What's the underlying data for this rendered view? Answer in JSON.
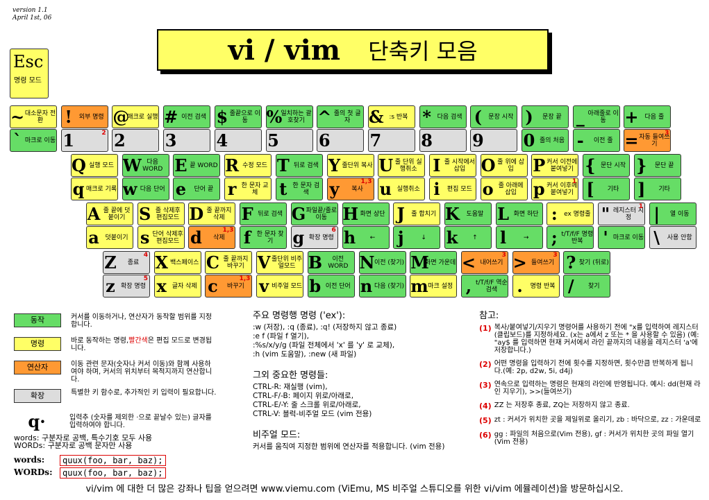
{
  "header": {
    "version": "version 1.1",
    "date": "April 1st, 06",
    "title": "vi / vim",
    "subtitle": "단축키 모음",
    "esc": {
      "char": "Esc",
      "label": "명령 모드",
      "color": "#ffff66"
    }
  },
  "keyboard": {
    "rows": [
      {
        "keys": [
          {
            "top": {
              "char": "~",
              "label": "대소문자 전환",
              "color": "#ffff66"
            },
            "bottom": {
              "char": "`",
              "label": "마크로 이동",
              "color": "#66dd66"
            }
          },
          {
            "top": {
              "char": "!",
              "label": "외부 명령",
              "color": "#ff9933"
            },
            "bottom": {
              "char": "1",
              "note": "2",
              "color": "#dddddd"
            }
          },
          {
            "top": {
              "char": "@",
              "label": "매크로 실행",
              "color": "#ffff66"
            },
            "bottom": {
              "char": "2",
              "color": "#dddddd"
            }
          },
          {
            "top": {
              "char": "#",
              "label": "이전 검색",
              "color": "#66dd66"
            },
            "bottom": {
              "char": "3",
              "color": "#dddddd"
            }
          },
          {
            "top": {
              "char": "$",
              "label": "줄끝으로 이동",
              "color": "#66dd66"
            },
            "bottom": {
              "char": "4",
              "color": "#dddddd"
            }
          },
          {
            "top": {
              "char": "%",
              "label": "일치하는 괄호찾기",
              "color": "#66dd66"
            },
            "bottom": {
              "char": "5",
              "color": "#dddddd"
            }
          },
          {
            "top": {
              "char": "^",
              "label": "줄의 첫 글자",
              "color": "#66dd66"
            },
            "bottom": {
              "char": "6",
              "color": "#dddddd"
            }
          },
          {
            "top": {
              "char": "&",
              "label": ":s 반복",
              "color": "#ffff66"
            },
            "bottom": {
              "char": "7",
              "color": "#dddddd"
            }
          },
          {
            "top": {
              "char": "*",
              "label": "다음 검색",
              "color": "#66dd66"
            },
            "bottom": {
              "char": "8",
              "color": "#dddddd"
            }
          },
          {
            "top": {
              "char": "(",
              "label": "문장 시작",
              "color": "#66dd66"
            },
            "bottom": {
              "char": "9",
              "color": "#dddddd"
            }
          },
          {
            "top": {
              "char": ")",
              "label": "문장 끝",
              "color": "#66dd66"
            },
            "bottom": {
              "char": "0",
              "label": "줄의 처음",
              "color": "#66dd66"
            }
          },
          {
            "top": {
              "char": "_",
              "label": "아래줄로 이동",
              "color": "#66dd66"
            },
            "bottom": {
              "char": "-",
              "label": "이전 줄",
              "color": "#66dd66"
            }
          },
          {
            "top": {
              "char": "+",
              "label": "다음 줄",
              "color": "#66dd66"
            },
            "bottom": {
              "char": "=",
              "label": "자동 들여쓰기",
              "note": "3",
              "color": "#ff9933"
            }
          }
        ]
      },
      {
        "keys": [
          {
            "top": {
              "char": "Q",
              "label": "실행 모드",
              "color": "#ffff66"
            },
            "bottom": {
              "char": "q",
              "label": "매크로 기록",
              "color": "#ffff66"
            }
          },
          {
            "top": {
              "char": "W",
              "label": "다음 WORD",
              "color": "#66dd66"
            },
            "bottom": {
              "char": "w",
              "label": "다음 단어",
              "color": "#66dd66"
            }
          },
          {
            "top": {
              "char": "E",
              "label": "끝 WORD",
              "color": "#66dd66"
            },
            "bottom": {
              "char": "e",
              "label": "단어 끝",
              "color": "#66dd66"
            }
          },
          {
            "top": {
              "char": "R",
              "label": "수정 모드",
              "color": "#ffff66"
            },
            "bottom": {
              "char": "r",
              "label": "한 문자 교체",
              "color": "#ffff66"
            }
          },
          {
            "top": {
              "char": "T",
              "label": "뒤로 검색",
              "color": "#66dd66"
            },
            "bottom": {
              "char": "t",
              "label": "한 문자 검색",
              "color": "#66dd66"
            }
          },
          {
            "top": {
              "char": "Y",
              "label": "줄단위 복사",
              "color": "#ffff66"
            },
            "bottom": {
              "char": "y",
              "label": "복사",
              "note": "1,3",
              "color": "#ff9933"
            }
          },
          {
            "top": {
              "char": "U",
              "label": "줄 단위 실행취소",
              "color": "#ffff66"
            },
            "bottom": {
              "char": "u",
              "label": "실행취소",
              "color": "#ffff66"
            }
          },
          {
            "top": {
              "char": "I",
              "label": "줄 시작에서 삽입",
              "color": "#ffff66"
            },
            "bottom": {
              "char": "i",
              "label": "편집 모드",
              "color": "#ffff66"
            }
          },
          {
            "top": {
              "char": "O",
              "label": "줄 위에 삽입",
              "color": "#ffff66"
            },
            "bottom": {
              "char": "o",
              "label": "줄 아래에 삽입",
              "color": "#ffff66"
            }
          },
          {
            "top": {
              "char": "P",
              "label": "커서 이전에 붙여넣기",
              "color": "#ffff66"
            },
            "bottom": {
              "char": "p",
              "label": "커서 이후에 붙여넣기",
              "note": "1",
              "color": "#ffff66"
            }
          },
          {
            "top": {
              "char": "{",
              "label": "문단 시작",
              "color": "#66dd66"
            },
            "bottom": {
              "char": "[",
              "label": "기타",
              "color": "#66dd66"
            }
          },
          {
            "top": {
              "char": "}",
              "label": "문단 끝",
              "color": "#66dd66"
            },
            "bottom": {
              "char": "]",
              "label": "기타",
              "color": "#66dd66"
            }
          }
        ]
      },
      {
        "keys": [
          {
            "top": {
              "char": "A",
              "label": "줄 끝에 덧붙이기",
              "color": "#ffff66"
            },
            "bottom": {
              "char": "a",
              "label": "덧붙이기",
              "color": "#ffff66"
            }
          },
          {
            "top": {
              "char": "S",
              "label": "줄 삭제후 편집모드",
              "color": "#ffff66"
            },
            "bottom": {
              "char": "s",
              "label": "단어 삭제후 편집모드",
              "color": "#ffff66"
            }
          },
          {
            "top": {
              "char": "D",
              "label": "줄 끝까지 삭제",
              "color": "#ffff66"
            },
            "bottom": {
              "char": "d",
              "label": "삭제",
              "note": "1,3",
              "color": "#ff9933"
            }
          },
          {
            "top": {
              "char": "F",
              "label": "뒤로 검색",
              "color": "#66dd66"
            },
            "bottom": {
              "char": "f",
              "label": "한 문자 찾기",
              "color": "#66dd66"
            }
          },
          {
            "top": {
              "char": "G",
              "label": "파일끝/줄로 이동",
              "color": "#66dd66"
            },
            "bottom": {
              "char": "g",
              "label": "확장 명령",
              "note": "6",
              "color": "#dddddd"
            }
          },
          {
            "top": {
              "char": "H",
              "label": "화면 상단",
              "color": "#66dd66"
            },
            "bottom": {
              "char": "h",
              "label": "←",
              "color": "#66dd66"
            }
          },
          {
            "top": {
              "char": "J",
              "label": "줄 합치기",
              "color": "#ffff66"
            },
            "bottom": {
              "char": "j",
              "label": "↓",
              "color": "#66dd66"
            }
          },
          {
            "top": {
              "char": "K",
              "label": "도움말",
              "color": "#66dd66"
            },
            "bottom": {
              "char": "k",
              "label": "↑",
              "color": "#66dd66"
            }
          },
          {
            "top": {
              "char": "L",
              "label": "화면 하단",
              "color": "#66dd66"
            },
            "bottom": {
              "char": "l",
              "label": "→",
              "color": "#66dd66"
            }
          },
          {
            "top": {
              "char": ":",
              "label": "ex 명령줄",
              "color": "#ffff66"
            },
            "bottom": {
              "char": ";",
              "label": "t/T/f/F 명령 반복",
              "color": "#66dd66"
            }
          },
          {
            "top": {
              "char": "\"",
              "label": "레지스터 지정",
              "note": "1",
              "color": "#dddddd"
            },
            "bottom": {
              "char": "'",
              "label": "마크로 이동",
              "color": "#66dd66"
            }
          },
          {
            "top": {
              "char": "|",
              "label": "열 이동",
              "color": "#66dd66"
            },
            "bottom": {
              "char": "\\",
              "label": "사용 안함",
              "color": "#dddddd"
            }
          }
        ]
      },
      {
        "keys": [
          {
            "top": {
              "char": "Z",
              "label": "종료",
              "note": "4",
              "color": "#dddddd"
            },
            "bottom": {
              "char": "z",
              "label": "확장 명령",
              "note": "5",
              "color": "#dddddd"
            }
          },
          {
            "top": {
              "char": "X",
              "label": "백스페이스",
              "color": "#ffff66"
            },
            "bottom": {
              "char": "x",
              "label": "글자 삭제",
              "color": "#ffff66"
            }
          },
          {
            "top": {
              "char": "C",
              "label": "줄 끝까지 바꾸기",
              "color": "#ffff66"
            },
            "bottom": {
              "char": "c",
              "label": "바꾸기",
              "note": "1,3",
              "color": "#ff9933"
            }
          },
          {
            "top": {
              "char": "V",
              "label": "줄단위 비주얼모드",
              "color": "#ffff66"
            },
            "bottom": {
              "char": "v",
              "label": "비주얼 모드",
              "color": "#ffff66"
            }
          },
          {
            "top": {
              "char": "B",
              "label": "이전 WORD",
              "color": "#66dd66"
            },
            "bottom": {
              "char": "b",
              "label": "이전 단어",
              "color": "#66dd66"
            }
          },
          {
            "top": {
              "char": "N",
              "label": "이전 (찾기)",
              "color": "#66dd66"
            },
            "bottom": {
              "char": "n",
              "label": "다음 (찾기)",
              "color": "#66dd66"
            }
          },
          {
            "top": {
              "char": "M",
              "label": "화면 가운데",
              "color": "#66dd66"
            },
            "bottom": {
              "char": "m",
              "label": "마크 설정",
              "color": "#ffff66"
            }
          },
          {
            "top": {
              "char": "<",
              "label": "내어쓰기",
              "note": "3",
              "color": "#ff9933"
            },
            "bottom": {
              "char": ",",
              "label": "t/T/f/F 역순 검색",
              "color": "#66dd66"
            }
          },
          {
            "top": {
              "char": ">",
              "label": "들여쓰기",
              "note": "3",
              "color": "#ff9933"
            },
            "bottom": {
              "char": ".",
              "label": "명령 반복",
              "color": "#ffff66"
            }
          },
          {
            "top": {
              "char": "?",
              "label": "찾기 (뒤로)",
              "color": "#66dd66"
            },
            "bottom": {
              "char": "/",
              "label": "찾기",
              "color": "#66dd66"
            }
          }
        ]
      }
    ]
  },
  "legend": {
    "items": [
      {
        "name": "동작",
        "color": "#66dd66",
        "text": "커서를 이동하거나, 연산자가 동작할 범위를 지정합니다."
      },
      {
        "name": "명령",
        "color": "#ffff66",
        "text": "바로 동작하는 명령,",
        "red": "빨간색",
        "rest": "은 편집 모드로 변경됩니다."
      },
      {
        "name": "연산자",
        "color": "#ff9933",
        "text": "이동 관련 문자(숫자나 커서 이동)와 함께 사용하여야 하며, 커서의 위치부터 목적지까지 연산합니다."
      },
      {
        "name": "확장",
        "color": "#dddddd",
        "text": "특별한 키 함수로, 추가적인 키 입력이 필요합니다."
      }
    ],
    "dot": {
      "char": "q·",
      "text": "입력추 (숫자를 제외한 ·으로 끝날수 있는) 글자를 입력하여야 합니다."
    },
    "words": "words: 구분자로 공백, 특수기호 모두 사용",
    "WORDs": "WORDs: 구분자로 공백 문자만 사용",
    "examples": [
      {
        "name": "words:",
        "code": "quux(foo, bar, baz);"
      },
      {
        "name": "WORDs:",
        "code": "quux(foo, bar, baz);"
      }
    ]
  },
  "commands": {
    "sections": [
      {
        "title": "주요 명령행 명령 ('ex'):",
        "lines": [
          ":w (저장), :q (종료), :q! (저장하지 않고 종료)",
          ":e f (파일 f 열기),",
          ":%s/x/y/g (파일 전체에서 'x' 를 'y' 로 교체),",
          ":h (vim 도움말), :new (새 파일)"
        ]
      },
      {
        "title": "그외 중요한 명령들:",
        "lines": [
          "CTRL-R: 재실행 (vim),",
          "CTRL-F/-B: 페이지 위로/아래로,",
          "CTRL-E/-Y: 줄 스크롤 위로/아래로,",
          "CTRL-V: 블럭-비주얼 모드 (vim 전용)"
        ]
      },
      {
        "title": "비주얼 모드:",
        "lines": [
          "커서를 움직여 지정한 범위에 연산자를 적용합니다. (vim 전용)"
        ]
      }
    ]
  },
  "notes": {
    "title": "참고:",
    "items": [
      {
        "num": "(1)",
        "text": "복사/붙여넣기/지우기 명령어를 사용하기 전에 \"x를 입력하여 레지스터(클립보드)를 지정하세요. (x는 a에서 z 또는 * 을 사용할 수 있음) (예: \"ay$ 를 입력하면 현재 커서에서 라인 끝까지의 내용을 레지스터 'a'에 저장합니다.)"
      },
      {
        "num": "(2)",
        "text": "어떤 명령을 입력하기 전에 횟수를 지정하면, 횟수만큼 반복하게 됩니다.(예: 2p, d2w, 5i, d4j)"
      },
      {
        "num": "(3)",
        "text": "연속으로 입력하는 명령은 현재의 라인에 반영됩니다. 예시: dd(현재 라인 지우기), >>(들여쓰기)"
      },
      {
        "num": "(4)",
        "text": "ZZ 는 저장후 종료, ZQ는 저장하지 않고 종료."
      },
      {
        "num": "(5)",
        "text": "zt : 커서가 위치한 곳을 제일위로 올리기, zb : 바닥으로, zz : 가운데로"
      },
      {
        "num": "(6)",
        "text": "gg : 파일의 처음으로(Vim 전용), gf : 커서가 위치한 곳의 파일 열기(Vim 전용)"
      }
    ]
  },
  "footer": "vi/vim 에 대한 더 많은 강좌나 팁을 얻으려면 www.viemu.com (ViEmu, MS 비주얼 스튜디오를 위한 vi/vim 에뮬레이션)을 방문하십시오."
}
